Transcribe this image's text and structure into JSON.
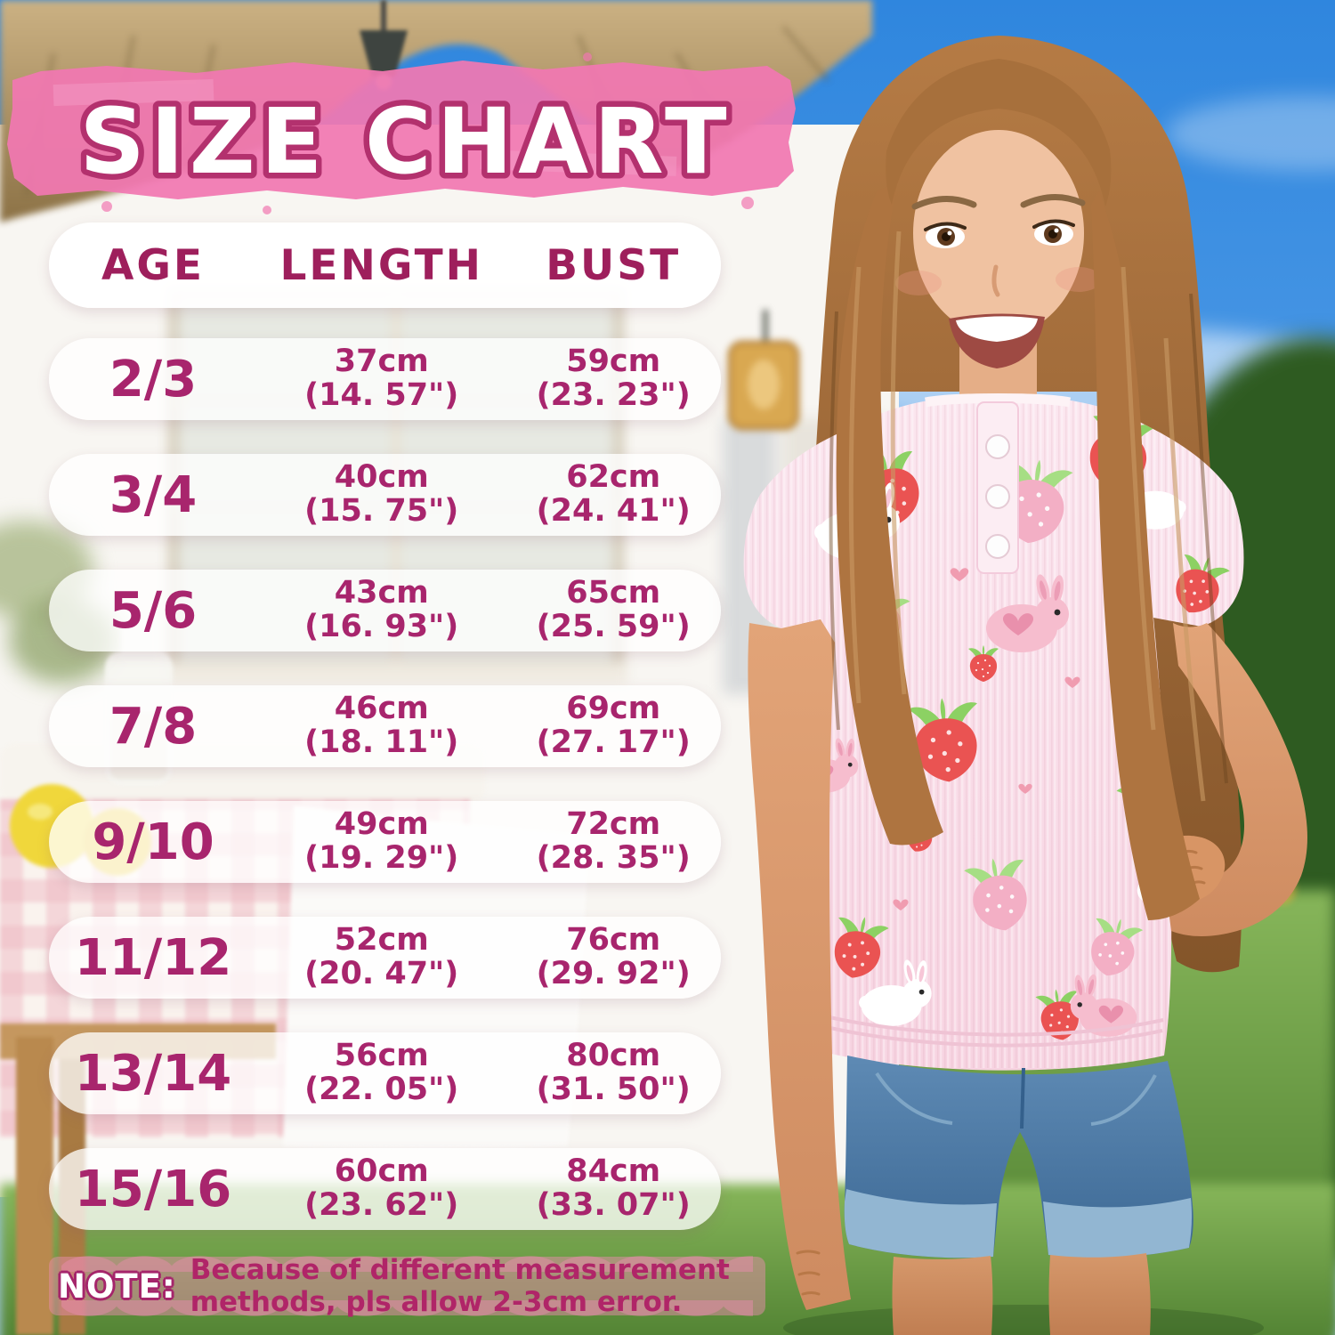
{
  "title": "SIZE CHART",
  "table": {
    "headers": [
      "AGE",
      "LENGTH",
      "BUST"
    ],
    "rows": [
      {
        "age": "2/3",
        "length_cm": "37cm",
        "length_in": "(14. 57\")",
        "bust_cm": "59cm",
        "bust_in": "(23. 23\")"
      },
      {
        "age": "3/4",
        "length_cm": "40cm",
        "length_in": "(15. 75\")",
        "bust_cm": "62cm",
        "bust_in": "(24. 41\")"
      },
      {
        "age": "5/6",
        "length_cm": "43cm",
        "length_in": "(16. 93\")",
        "bust_cm": "65cm",
        "bust_in": "(25. 59\")"
      },
      {
        "age": "7/8",
        "length_cm": "46cm",
        "length_in": "(18. 11\")",
        "bust_cm": "69cm",
        "bust_in": "(27. 17\")"
      },
      {
        "age": "9/10",
        "length_cm": "49cm",
        "length_in": "(19. 29\")",
        "bust_cm": "72cm",
        "bust_in": "(28. 35\")"
      },
      {
        "age": "11/12",
        "length_cm": "52cm",
        "length_in": "(20. 47\")",
        "bust_cm": "76cm",
        "bust_in": "(29. 92\")"
      },
      {
        "age": "13/14",
        "length_cm": "56cm",
        "length_in": "(22. 05\")",
        "bust_cm": "80cm",
        "bust_in": "(31. 50\")"
      },
      {
        "age": "15/16",
        "length_cm": "60cm",
        "length_in": "(23. 62\")",
        "bust_cm": "84cm",
        "bust_in": "(33. 07\")"
      }
    ]
  },
  "note": {
    "label": "NOTE:",
    "text": "Because of different measurement methods, pls allow 2-3cm error."
  },
  "colors": {
    "accent_magenta": "#A8256D",
    "header_magenta": "#9E1F5C",
    "brush_pink": "#F177B1",
    "title_outline": "#B3316E",
    "note_band_pink": "#E78BAC"
  }
}
